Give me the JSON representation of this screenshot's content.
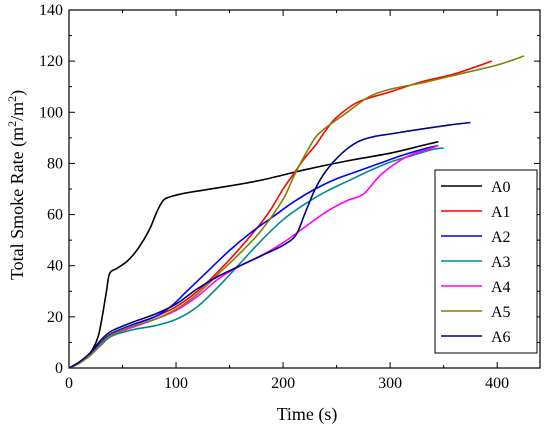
{
  "chart_data": {
    "type": "line",
    "xlabel": "Time (s)",
    "ylabel": "Total Smoke Rate (m²/m²)",
    "ylabel_parts": [
      "Total Smoke Rate (m",
      "2",
      "/m",
      "2",
      ")"
    ],
    "xlim": [
      0,
      440
    ],
    "ylim": [
      0,
      140
    ],
    "x_ticks": [
      0,
      100,
      200,
      300,
      400
    ],
    "y_ticks": [
      0,
      20,
      40,
      60,
      80,
      100,
      120,
      140
    ],
    "x_tick_labels": [
      "0",
      "100",
      "200",
      "300",
      "400"
    ],
    "y_tick_labels": [
      "0",
      "20",
      "40",
      "60",
      "80",
      "100",
      "120",
      "140"
    ],
    "legend_position": "right",
    "grid": false,
    "series": [
      {
        "name": "A0",
        "color": "#000000",
        "points": [
          [
            0,
            0
          ],
          [
            10,
            2
          ],
          [
            20,
            6
          ],
          [
            27,
            12
          ],
          [
            31,
            20
          ],
          [
            35,
            30
          ],
          [
            38,
            37
          ],
          [
            45,
            39
          ],
          [
            55,
            42
          ],
          [
            65,
            47
          ],
          [
            75,
            54
          ],
          [
            82,
            61
          ],
          [
            88,
            65.5
          ],
          [
            95,
            67
          ],
          [
            110,
            68.5
          ],
          [
            140,
            70.5
          ],
          [
            180,
            73.5
          ],
          [
            220,
            77.5
          ],
          [
            260,
            81
          ],
          [
            300,
            84
          ],
          [
            330,
            87
          ],
          [
            345,
            88.5
          ]
        ]
      },
      {
        "name": "A1",
        "color": "#ff0000",
        "points": [
          [
            0,
            0
          ],
          [
            10,
            2
          ],
          [
            20,
            5.5
          ],
          [
            30,
            10
          ],
          [
            40,
            13.5
          ],
          [
            60,
            17
          ],
          [
            80,
            20
          ],
          [
            100,
            24
          ],
          [
            120,
            30
          ],
          [
            140,
            38
          ],
          [
            160,
            47
          ],
          [
            180,
            57
          ],
          [
            190,
            63
          ],
          [
            200,
            70
          ],
          [
            210,
            76
          ],
          [
            220,
            82
          ],
          [
            230,
            87
          ],
          [
            240,
            93
          ],
          [
            250,
            98
          ],
          [
            270,
            104
          ],
          [
            300,
            108
          ],
          [
            330,
            112
          ],
          [
            360,
            115
          ],
          [
            395,
            120
          ]
        ]
      },
      {
        "name": "A2",
        "color": "#0000ff",
        "points": [
          [
            0,
            0
          ],
          [
            10,
            2
          ],
          [
            20,
            5.5
          ],
          [
            30,
            10
          ],
          [
            40,
            13.5
          ],
          [
            60,
            17
          ],
          [
            80,
            20
          ],
          [
            95,
            24
          ],
          [
            110,
            30
          ],
          [
            130,
            38
          ],
          [
            150,
            46
          ],
          [
            170,
            53
          ],
          [
            190,
            59
          ],
          [
            210,
            65
          ],
          [
            230,
            70
          ],
          [
            250,
            74
          ],
          [
            270,
            77
          ],
          [
            290,
            80
          ],
          [
            310,
            83
          ],
          [
            330,
            85.5
          ],
          [
            345,
            87
          ]
        ]
      },
      {
        "name": "A3",
        "color": "#008b8b",
        "points": [
          [
            0,
            0
          ],
          [
            10,
            2
          ],
          [
            20,
            5
          ],
          [
            30,
            9
          ],
          [
            40,
            12.5
          ],
          [
            60,
            15
          ],
          [
            80,
            16.5
          ],
          [
            100,
            19
          ],
          [
            120,
            24
          ],
          [
            140,
            32
          ],
          [
            160,
            41
          ],
          [
            180,
            50
          ],
          [
            200,
            58
          ],
          [
            220,
            64
          ],
          [
            240,
            69
          ],
          [
            260,
            73
          ],
          [
            280,
            77
          ],
          [
            300,
            80.5
          ],
          [
            320,
            83
          ],
          [
            340,
            85.5
          ],
          [
            350,
            86
          ]
        ]
      },
      {
        "name": "A4",
        "color": "#ff00ff",
        "points": [
          [
            0,
            0
          ],
          [
            10,
            2
          ],
          [
            20,
            5
          ],
          [
            30,
            9.5
          ],
          [
            40,
            13
          ],
          [
            60,
            16
          ],
          [
            80,
            19
          ],
          [
            100,
            22.5
          ],
          [
            120,
            28
          ],
          [
            140,
            35
          ],
          [
            160,
            40
          ],
          [
            180,
            44
          ],
          [
            200,
            49
          ],
          [
            220,
            55
          ],
          [
            240,
            61
          ],
          [
            260,
            65.5
          ],
          [
            275,
            68
          ],
          [
            290,
            75
          ],
          [
            305,
            80
          ],
          [
            320,
            83.5
          ],
          [
            335,
            85.5
          ],
          [
            345,
            87
          ]
        ]
      },
      {
        "name": "A5",
        "color": "#808000",
        "points": [
          [
            0,
            0
          ],
          [
            10,
            2
          ],
          [
            20,
            5
          ],
          [
            30,
            9.5
          ],
          [
            40,
            13
          ],
          [
            60,
            16.5
          ],
          [
            80,
            19
          ],
          [
            100,
            23
          ],
          [
            120,
            29
          ],
          [
            140,
            37
          ],
          [
            160,
            45
          ],
          [
            180,
            54
          ],
          [
            200,
            66
          ],
          [
            210,
            75
          ],
          [
            220,
            83
          ],
          [
            230,
            90
          ],
          [
            240,
            94
          ],
          [
            260,
            100
          ],
          [
            280,
            106
          ],
          [
            300,
            109
          ],
          [
            330,
            111.5
          ],
          [
            360,
            114.5
          ],
          [
            400,
            118.5
          ],
          [
            425,
            122
          ]
        ]
      },
      {
        "name": "A6",
        "color": "#00008b",
        "points": [
          [
            0,
            0
          ],
          [
            10,
            2.5
          ],
          [
            20,
            6
          ],
          [
            30,
            11
          ],
          [
            40,
            14.5
          ],
          [
            60,
            18
          ],
          [
            80,
            21
          ],
          [
            100,
            25
          ],
          [
            120,
            31
          ],
          [
            140,
            36
          ],
          [
            160,
            40
          ],
          [
            180,
            44
          ],
          [
            200,
            48
          ],
          [
            212,
            52
          ],
          [
            220,
            60
          ],
          [
            230,
            70
          ],
          [
            240,
            77
          ],
          [
            255,
            84
          ],
          [
            270,
            88.5
          ],
          [
            285,
            90.5
          ],
          [
            300,
            91.5
          ],
          [
            330,
            93.5
          ],
          [
            355,
            95
          ],
          [
            375,
            96
          ]
        ]
      }
    ]
  }
}
